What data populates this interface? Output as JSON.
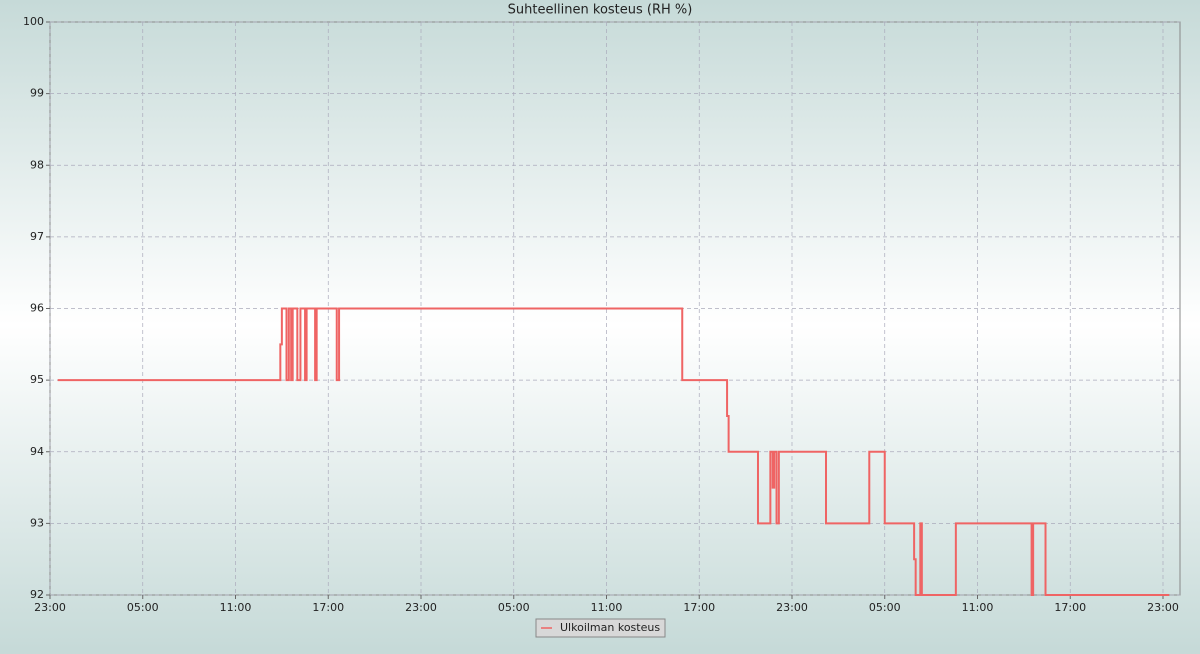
{
  "chart_data": {
    "type": "line",
    "title": "Suhteellinen kosteus (RH %)",
    "x": [
      0.5,
      14.9,
      14.9,
      15.0,
      15.0,
      15.3,
      15.3,
      15.45,
      15.45,
      15.6,
      15.6,
      15.7,
      15.7,
      16.0,
      16.0,
      16.2,
      16.2,
      16.5,
      16.5,
      16.6,
      16.6,
      17.15,
      17.15,
      17.25,
      17.25,
      18.55,
      18.55,
      18.7,
      18.7,
      40.9,
      40.9,
      43.8,
      43.8,
      43.9,
      43.9,
      45.8,
      45.8,
      46.6,
      46.6,
      46.75,
      46.75,
      46.85,
      46.85,
      47.0,
      47.0,
      47.15,
      47.15,
      50.2,
      50.2,
      53.0,
      53.0,
      54.0,
      54.0,
      55.9,
      55.9,
      56.0,
      56.0,
      56.3,
      56.3,
      56.4,
      56.4,
      58.6,
      58.6,
      63.5,
      63.5,
      63.6,
      63.6,
      64.4,
      64.4,
      72.4
    ],
    "series": [
      {
        "name": "Ulkoilman kosteus",
        "color": "#ef6464",
        "values": [
          95,
          95,
          95.5,
          95.5,
          96,
          96,
          95,
          95,
          96,
          96,
          95,
          95,
          96,
          96,
          95,
          95,
          96,
          96,
          95,
          95,
          96,
          96,
          95,
          95,
          96,
          96,
          95,
          95,
          96,
          96,
          95,
          95,
          94.5,
          94.5,
          94,
          94,
          93,
          93,
          94,
          94,
          93.5,
          93.5,
          94,
          94,
          93,
          93,
          94,
          94,
          93,
          93,
          94,
          94,
          93,
          93,
          92.5,
          92.5,
          92,
          92,
          93,
          93,
          92,
          92,
          93,
          93,
          92,
          92,
          93,
          93,
          92,
          92
        ]
      }
    ],
    "xlim": [
      0,
      73.1
    ],
    "xticks": [
      {
        "value": 0,
        "label": "23:00"
      },
      {
        "value": 6,
        "label": "05:00"
      },
      {
        "value": 12,
        "label": "11:00"
      },
      {
        "value": 18,
        "label": "17:00"
      },
      {
        "value": 24,
        "label": "23:00"
      },
      {
        "value": 30,
        "label": "05:00"
      },
      {
        "value": 36,
        "label": "11:00"
      },
      {
        "value": 42,
        "label": "17:00"
      },
      {
        "value": 48,
        "label": "23:00"
      },
      {
        "value": 54,
        "label": "05:00"
      },
      {
        "value": 60,
        "label": "11:00"
      },
      {
        "value": 66,
        "label": "17:00"
      },
      {
        "value": 72,
        "label": "23:00"
      }
    ],
    "ylim": [
      92,
      100
    ],
    "yticks": [
      92,
      93,
      94,
      95,
      96,
      97,
      98,
      99,
      100
    ],
    "grid": true,
    "legend": "bottom"
  }
}
